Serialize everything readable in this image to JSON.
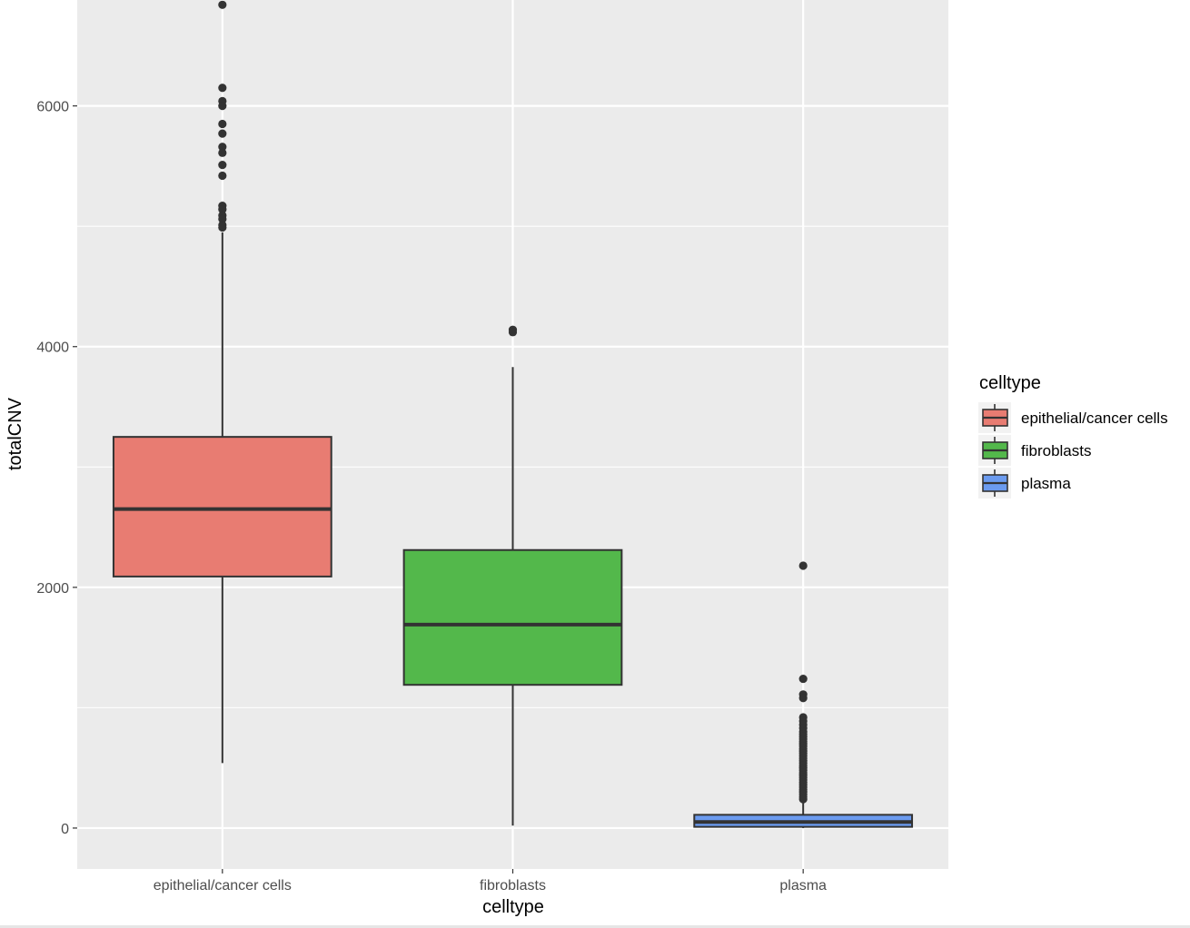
{
  "chart_data": {
    "type": "boxplot",
    "title": "",
    "xlabel": "celltype",
    "ylabel": "totalCNV",
    "ylim": [
      -340,
      6880
    ],
    "yticks": [
      0,
      2000,
      4000,
      6000
    ],
    "y_tick_labels": [
      "0",
      "2000",
      "4000",
      "6000"
    ],
    "categories": [
      "epithelial/cancer cells",
      "fibroblasts",
      "plasma"
    ],
    "legend": {
      "title": "celltype",
      "placement": "right",
      "entries": [
        {
          "label": "epithelial/cancer cells",
          "color": "#e87c72"
        },
        {
          "label": "fibroblasts",
          "color": "#53b84b"
        },
        {
          "label": "plasma",
          "color": "#6b9bef"
        }
      ]
    },
    "boxes": [
      {
        "category": "epithelial/cancer cells",
        "color": "#e87c72",
        "whisker_low": 540,
        "q1": 2090,
        "median": 2650,
        "q3": 3250,
        "whisker_high": 4950,
        "outliers": [
          6840,
          6150,
          6040,
          6000,
          5850,
          5770,
          5660,
          5610,
          5510,
          5420,
          5170,
          5140,
          5090,
          5060,
          5010,
          4990
        ]
      },
      {
        "category": "fibroblasts",
        "color": "#53b84b",
        "whisker_low": 20,
        "q1": 1190,
        "median": 1690,
        "q3": 2310,
        "whisker_high": 3830,
        "outliers": [
          4140,
          4120
        ]
      },
      {
        "category": "plasma",
        "color": "#6b9bef",
        "whisker_low": 0,
        "q1": 10,
        "median": 50,
        "q3": 110,
        "whisker_high": 210,
        "outliers": [
          2180,
          1240,
          1110,
          1080,
          920,
          890,
          860,
          830,
          800,
          780,
          760,
          740,
          720,
          700,
          680,
          660,
          640,
          620,
          600,
          580,
          560,
          540,
          520,
          500,
          480,
          460,
          440,
          420,
          400,
          380,
          360,
          340,
          320,
          300,
          280,
          260,
          240
        ]
      }
    ],
    "colors": {
      "panel_background": "#ebebeb",
      "grid": "#ffffff",
      "box_outline": "#333333",
      "point": "#333333"
    }
  }
}
